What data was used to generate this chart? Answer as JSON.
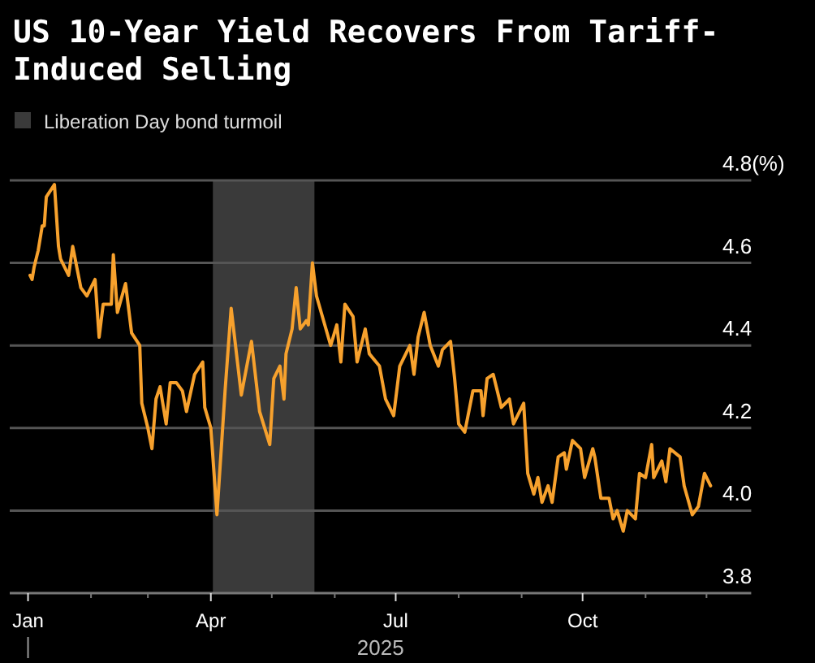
{
  "chart_data": {
    "type": "line",
    "title": "US 10-Year Yield Recovers From Tariff-Induced Selling",
    "xlabel": "2025",
    "x": [
      "2025-01-02",
      "2025-01-03",
      "2025-01-04",
      "2025-01-06",
      "2025-01-08",
      "2025-01-09",
      "2025-01-10",
      "2025-01-14",
      "2025-01-16",
      "2025-01-17",
      "2025-01-21",
      "2025-01-23",
      "2025-01-27",
      "2025-01-30",
      "2025-02-03",
      "2025-02-05",
      "2025-02-07",
      "2025-02-11",
      "2025-02-12",
      "2025-02-14",
      "2025-02-18",
      "2025-02-21",
      "2025-02-25",
      "2025-02-26",
      "2025-03-01",
      "2025-03-03",
      "2025-03-05",
      "2025-03-07",
      "2025-03-10",
      "2025-03-12",
      "2025-03-15",
      "2025-03-18",
      "2025-03-20",
      "2025-03-24",
      "2025-03-28",
      "2025-03-29",
      "2025-04-01",
      "2025-04-04",
      "2025-04-08",
      "2025-04-11",
      "2025-04-16",
      "2025-04-21",
      "2025-04-25",
      "2025-04-30",
      "2025-05-02",
      "2025-05-05",
      "2025-05-07",
      "2025-05-08",
      "2025-05-11",
      "2025-05-13",
      "2025-05-15",
      "2025-05-18",
      "2025-05-19",
      "2025-05-21",
      "2025-05-23",
      "2025-05-30",
      "2025-06-02",
      "2025-06-04",
      "2025-06-06",
      "2025-06-10",
      "2025-06-12",
      "2025-06-16",
      "2025-06-18",
      "2025-06-23",
      "2025-06-26",
      "2025-06-30",
      "2025-07-03",
      "2025-07-08",
      "2025-07-10",
      "2025-07-12",
      "2025-07-15",
      "2025-07-18",
      "2025-07-22",
      "2025-07-24",
      "2025-07-28",
      "2025-07-30",
      "2025-08-01",
      "2025-08-04",
      "2025-08-08",
      "2025-08-12",
      "2025-08-13",
      "2025-08-15",
      "2025-08-18",
      "2025-08-20",
      "2025-08-22",
      "2025-08-26",
      "2025-08-28",
      "2025-09-02",
      "2025-09-04",
      "2025-09-07",
      "2025-09-09",
      "2025-09-11",
      "2025-09-14",
      "2025-09-16",
      "2025-09-19",
      "2025-09-22",
      "2025-09-23",
      "2025-09-26",
      "2025-09-30",
      "2025-10-02",
      "2025-10-06",
      "2025-10-07",
      "2025-10-10",
      "2025-10-14",
      "2025-10-16",
      "2025-10-18",
      "2025-10-21",
      "2025-10-23",
      "2025-10-27",
      "2025-10-29",
      "2025-11-01",
      "2025-11-04",
      "2025-11-05",
      "2025-11-09",
      "2025-11-11",
      "2025-11-13",
      "2025-11-18",
      "2025-11-20",
      "2025-11-24",
      "2025-11-27",
      "2025-11-30",
      "2025-12-03"
    ],
    "series": [
      {
        "color": "#f7a12d",
        "values": [
          4.57,
          4.56,
          4.59,
          4.63,
          4.69,
          4.69,
          4.76,
          4.79,
          4.64,
          4.61,
          4.57,
          4.64,
          4.54,
          4.52,
          4.56,
          4.42,
          4.5,
          4.5,
          4.62,
          4.48,
          4.55,
          4.43,
          4.4,
          4.26,
          4.2,
          4.15,
          4.27,
          4.3,
          4.21,
          4.31,
          4.31,
          4.29,
          4.24,
          4.33,
          4.36,
          4.25,
          4.2,
          3.99,
          4.29,
          4.49,
          4.28,
          4.41,
          4.24,
          4.16,
          4.32,
          4.35,
          4.27,
          4.38,
          4.44,
          4.54,
          4.44,
          4.46,
          4.45,
          4.6,
          4.52,
          4.4,
          4.45,
          4.36,
          4.5,
          4.47,
          4.36,
          4.44,
          4.38,
          4.35,
          4.27,
          4.23,
          4.35,
          4.4,
          4.33,
          4.42,
          4.48,
          4.4,
          4.35,
          4.39,
          4.41,
          4.32,
          4.21,
          4.19,
          4.29,
          4.29,
          4.23,
          4.32,
          4.33,
          4.29,
          4.25,
          4.27,
          4.21,
          4.26,
          4.09,
          4.04,
          4.08,
          4.02,
          4.06,
          4.02,
          4.13,
          4.14,
          4.1,
          4.17,
          4.15,
          4.08,
          4.15,
          4.13,
          4.03,
          4.03,
          3.98,
          4.0,
          3.95,
          4.0,
          3.98,
          4.09,
          4.08,
          4.16,
          4.08,
          4.12,
          4.07,
          4.15,
          4.13,
          4.06,
          3.99,
          4.01,
          4.09,
          4.06
        ]
      }
    ],
    "xlim": [
      "2024-12-23",
      "2025-12-23"
    ],
    "xticks": [
      {
        "value": "2025-01-01",
        "label": "Jan"
      },
      {
        "value": "2025-02-01",
        "label": null
      },
      {
        "value": "2025-03-01",
        "label": null
      },
      {
        "value": "2025-04-01",
        "label": "Apr"
      },
      {
        "value": "2025-05-01",
        "label": null
      },
      {
        "value": "2025-06-01",
        "label": null
      },
      {
        "value": "2025-07-01",
        "label": "Jul"
      },
      {
        "value": "2025-08-01",
        "label": null
      },
      {
        "value": "2025-09-01",
        "label": null
      },
      {
        "value": "2025-10-01",
        "label": "Oct"
      },
      {
        "value": "2025-11-01",
        "label": null
      },
      {
        "value": "2025-12-01",
        "label": null
      }
    ],
    "ylim": [
      3.8,
      4.8
    ],
    "yticks": [
      3.8,
      {
        "value": 4.0,
        "label": "4.0"
      },
      4.2,
      4.4,
      4.6,
      {
        "value": 4.8,
        "label": "4.8(%)"
      }
    ],
    "bands": [
      {
        "axis": "x",
        "from": "2025-04-02",
        "to": "2025-05-22",
        "label": "Liberation Day bond turmoil",
        "color": "#3a3a3a"
      }
    ],
    "grid": "y",
    "legend": "top left",
    "marker": "none",
    "line_style": "solid"
  }
}
